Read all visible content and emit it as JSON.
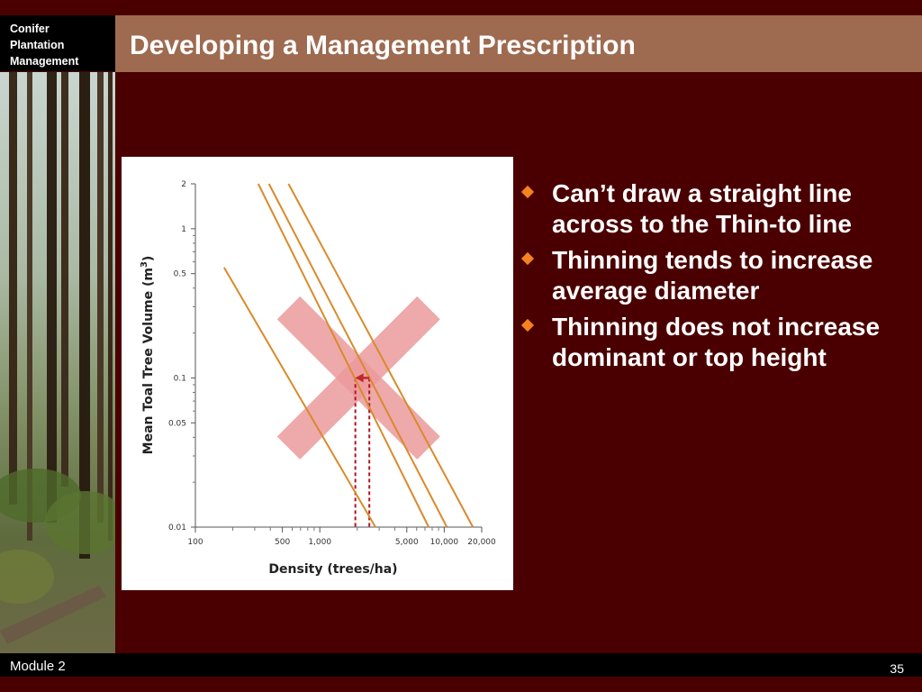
{
  "header": {
    "logo_lines": [
      "Conifer",
      "Plantation",
      "Management"
    ],
    "title": "Developing a Management Prescription"
  },
  "chart_data": {
    "type": "line",
    "xlabel": "Density (trees/ha)",
    "ylabel_prefix": "Mean Toal Tree Volume (m",
    "ylabel_sup": "3",
    "ylabel_suffix": ")",
    "x_scale": "log",
    "y_scale": "log",
    "xlim": [
      100,
      20000
    ],
    "ylim": [
      0.01,
      2
    ],
    "x_ticks": [
      {
        "value": 100,
        "label": "100"
      },
      {
        "value": 500,
        "label": "500"
      },
      {
        "value": 1000,
        "label": "1,000"
      },
      {
        "value": 5000,
        "label": "5,000"
      },
      {
        "value": 10000,
        "label": "10,000"
      },
      {
        "value": 20000,
        "label": "20,000"
      }
    ],
    "x_minor_ticks": [
      200,
      300,
      400,
      600,
      700,
      800,
      900,
      2000,
      3000,
      4000,
      6000,
      7000,
      8000,
      9000
    ],
    "y_ticks": [
      {
        "value": 2,
        "label": "2"
      },
      {
        "value": 1,
        "label": "1"
      },
      {
        "value": 0.5,
        "label": "0.5"
      },
      {
        "value": 0.1,
        "label": "0.1"
      },
      {
        "value": 0.05,
        "label": "0.05"
      },
      {
        "value": 0.01,
        "label": "0.01"
      }
    ],
    "y_minor_ticks": [
      0.02,
      0.03,
      0.04,
      0.06,
      0.07,
      0.08,
      0.09,
      0.2,
      0.3,
      0.4,
      0.6,
      0.7,
      0.8,
      0.9
    ],
    "series": [
      {
        "points": [
          [
            170,
            0.55
          ],
          [
            2800,
            0.01
          ]
        ],
        "color": "#d98a2b"
      },
      {
        "points": [
          [
            320,
            2.0
          ],
          [
            7500,
            0.01
          ]
        ],
        "color": "#d98a2b"
      },
      {
        "points": [
          [
            390,
            2.0
          ],
          [
            10500,
            0.01
          ]
        ],
        "color": "#d98a2b"
      },
      {
        "points": [
          [
            560,
            2.0
          ],
          [
            17000,
            0.01
          ]
        ],
        "color": "#d98a2b"
      }
    ],
    "thin_arrow": {
      "from": [
        2500,
        0.1
      ],
      "to": [
        1930,
        0.1
      ],
      "color": "#c0282e"
    },
    "drop_lines": [
      {
        "points": [
          [
            1930,
            0.1
          ],
          [
            1930,
            0.01
          ]
        ],
        "color": "#b0141e"
      },
      {
        "points": [
          [
            2500,
            0.1
          ],
          [
            2500,
            0.01
          ]
        ],
        "color": "#b0141e"
      }
    ],
    "cross_mark": {
      "center": [
        2050,
        0.1
      ],
      "color": "#eb9a9c"
    }
  },
  "bullets": [
    "Can’t draw a straight line across to the Thin-to line",
    "Thinning tends to increase average diameter",
    "Thinning does not increase dominant or top height"
  ],
  "footer": {
    "module": "Module 2",
    "page": "35"
  },
  "colors": {
    "background": "#4a0000",
    "title_bar": "#9e6b50",
    "bullet": "#f58220",
    "footer": "#000000"
  }
}
